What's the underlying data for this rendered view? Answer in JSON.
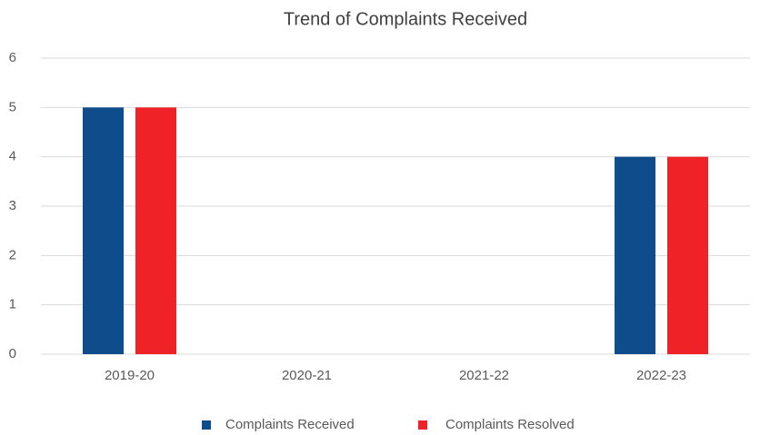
{
  "chart_data": {
    "type": "bar",
    "title": "Trend of Complaints Received",
    "categories": [
      "2019-20",
      "2020-21",
      "2021-22",
      "2022-23"
    ],
    "series": [
      {
        "name": "Complaints Received",
        "color": "#0e4c8c",
        "values": [
          5,
          0,
          0,
          4
        ]
      },
      {
        "name": "Complaints Resolved",
        "color": "#ee2227",
        "values": [
          5,
          0,
          0,
          4
        ]
      }
    ],
    "ylim": [
      0,
      6
    ],
    "yticks": [
      0,
      1,
      2,
      3,
      4,
      5,
      6
    ],
    "grid": true,
    "legend": "bottom"
  }
}
